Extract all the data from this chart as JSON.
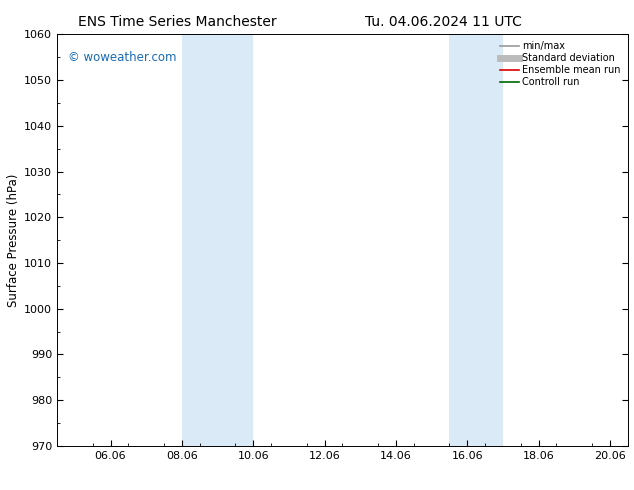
{
  "title_left": "ENS Time Series Manchester",
  "title_right": "Tu. 04.06.2024 11 UTC",
  "ylabel": "Surface Pressure (hPa)",
  "ylim": [
    970,
    1060
  ],
  "yticks": [
    970,
    980,
    990,
    1000,
    1010,
    1020,
    1030,
    1040,
    1050,
    1060
  ],
  "xlim_start": 4.5,
  "xlim_end": 20.5,
  "xtick_labels": [
    "06.06",
    "08.06",
    "10.06",
    "12.06",
    "14.06",
    "16.06",
    "18.06",
    "20.06"
  ],
  "xtick_positions": [
    6,
    8,
    10,
    12,
    14,
    16,
    18,
    20
  ],
  "shaded_bands": [
    {
      "x_start": 8.0,
      "x_end": 10.0
    },
    {
      "x_start": 15.5,
      "x_end": 17.0
    }
  ],
  "shade_color": "#daeaf7",
  "watermark_text": "© woweather.com",
  "watermark_color": "#1a6bb5",
  "bg_color": "#ffffff",
  "plot_bg_color": "#ffffff",
  "legend_entries": [
    {
      "label": "min/max",
      "color": "#999999",
      "lw": 1.2
    },
    {
      "label": "Standard deviation",
      "color": "#bbbbbb",
      "lw": 5
    },
    {
      "label": "Ensemble mean run",
      "color": "#dd0000",
      "lw": 1.2
    },
    {
      "label": "Controll run",
      "color": "#006600",
      "lw": 1.2
    }
  ],
  "title_fontsize": 10,
  "tick_fontsize": 8,
  "label_fontsize": 8.5,
  "watermark_fontsize": 8.5
}
